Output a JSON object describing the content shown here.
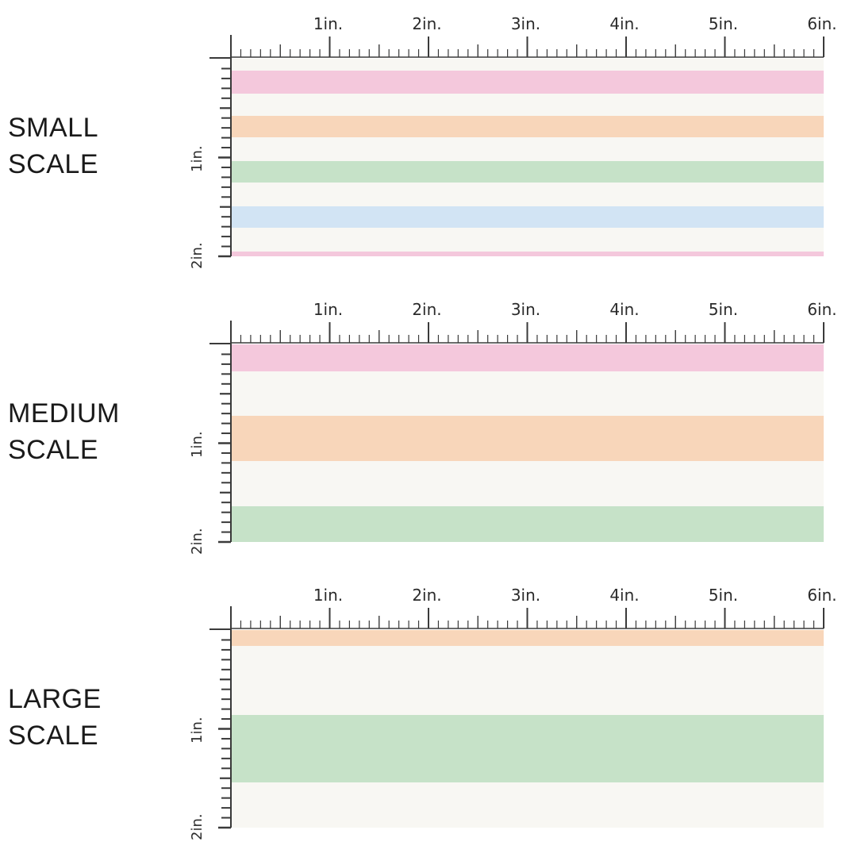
{
  "colors": {
    "background": "#f8f7f3",
    "pink": "#f4c8dc",
    "peach": "#f8d6ba",
    "green": "#c6e2c8",
    "blue": "#d2e4f4",
    "ruler": "#3a3a3a"
  },
  "ruler": {
    "horizontal_labels": [
      "1in.",
      "2in.",
      "3in.",
      "4in.",
      "5in.",
      "6in."
    ],
    "vertical_labels": [
      "1in.",
      "2in."
    ]
  },
  "panels": [
    {
      "label_line1": "SMALL",
      "label_line2": "SCALE",
      "fabric_height_in": 2.0,
      "stripes": [
        {
          "color": "pink",
          "start_in": 0.12,
          "end_in": 0.35
        },
        {
          "color": "peach",
          "start_in": 0.58,
          "end_in": 0.8
        },
        {
          "color": "green",
          "start_in": 1.04,
          "end_in": 1.26
        },
        {
          "color": "blue",
          "start_in": 1.49,
          "end_in": 1.71
        },
        {
          "color": "pink",
          "start_in": 1.95,
          "end_in": 2.0
        }
      ]
    },
    {
      "label_line1": "MEDIUM",
      "label_line2": "SCALE",
      "fabric_height_in": 2.0,
      "stripes": [
        {
          "color": "pink",
          "start_in": 0.0,
          "end_in": 0.27
        },
        {
          "color": "peach",
          "start_in": 0.72,
          "end_in": 1.18
        },
        {
          "color": "green",
          "start_in": 1.64,
          "end_in": 2.0
        }
      ]
    },
    {
      "label_line1": "LARGE",
      "label_line2": "SCALE",
      "fabric_height_in": 2.0,
      "stripes": [
        {
          "color": "peach",
          "start_in": 0.0,
          "end_in": 0.16
        },
        {
          "color": "green",
          "start_in": 0.86,
          "end_in": 1.54
        }
      ]
    }
  ]
}
